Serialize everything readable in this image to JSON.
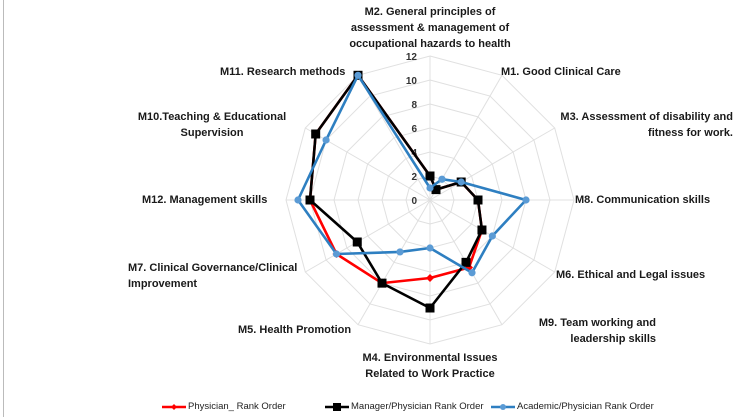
{
  "chart_data": {
    "type": "radar",
    "axes": [
      [
        "M2. General principles of",
        "assessment & management of",
        "occupational hazards to health"
      ],
      [
        "M1. Good Clinical Care"
      ],
      [
        "M3. Assessment of disability and",
        "fitness for work."
      ],
      [
        "M8. Communication skills"
      ],
      [
        "M6. Ethical and Legal issues"
      ],
      [
        "M9. Team working and",
        "leadership skills"
      ],
      [
        "M4. Environmental Issues",
        "Related to Work Practice"
      ],
      [
        "M5. Health Promotion"
      ],
      [
        "M7. Clinical Governance/Clinical",
        "Improvement"
      ],
      [
        "M12. Management skills"
      ],
      [
        "M10.Teaching & Educational",
        "Supervision"
      ],
      [
        "M11. Research methods"
      ]
    ],
    "rlim": [
      0,
      12
    ],
    "ticks": [
      "0",
      "2",
      "4",
      "6",
      "8",
      "10",
      "12"
    ],
    "grid": true,
    "legend_position": "bottom",
    "series": [
      {
        "name": "Physician_  Rank Order",
        "color": "#ff0000",
        "marker": "diamond",
        "values": [
          2,
          1,
          3,
          4,
          5,
          6.5,
          6.5,
          8,
          9,
          10,
          11,
          12
        ]
      },
      {
        "name": "Manager/Physician Rank Order",
        "color": "#000000",
        "marker": "square",
        "values": [
          2,
          1,
          3,
          4,
          5,
          6,
          9,
          8,
          7,
          10,
          11,
          12
        ]
      },
      {
        "name": "Academic/Physician Rank Order",
        "color": "#2e7fc1",
        "marker": "circle",
        "values": [
          1,
          2,
          3,
          8,
          6,
          7,
          4,
          5,
          9,
          11,
          10,
          12
        ]
      }
    ]
  }
}
